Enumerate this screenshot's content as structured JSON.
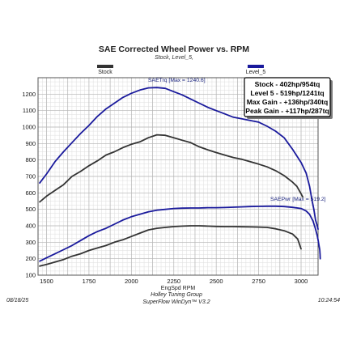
{
  "chart_data": {
    "type": "line",
    "title": "SAE Corrected Wheel Power vs. RPM",
    "subtitle": "Stock, Level_5,",
    "xlabel": "EngSpd RPM",
    "ylabel": "",
    "xlim": [
      1450,
      3100
    ],
    "ylim": [
      100,
      1300
    ],
    "x_ticks": [
      1500,
      1750,
      2000,
      2250,
      2500,
      2750,
      3000
    ],
    "y_ticks": [
      100,
      200,
      300,
      400,
      500,
      600,
      700,
      800,
      900,
      1000,
      1100,
      1200
    ],
    "grid": true,
    "legend": [
      {
        "name": "Stock",
        "color": "#333333"
      },
      {
        "name": "Level_5",
        "color": "#1a1a9c"
      }
    ],
    "series": [
      {
        "name": "Stock",
        "metric": "torque",
        "color": "#333333",
        "points": [
          [
            1460,
            545
          ],
          [
            1500,
            580
          ],
          [
            1550,
            615
          ],
          [
            1600,
            650
          ],
          [
            1650,
            700
          ],
          [
            1700,
            730
          ],
          [
            1750,
            765
          ],
          [
            1800,
            795
          ],
          [
            1850,
            830
          ],
          [
            1900,
            850
          ],
          [
            1950,
            875
          ],
          [
            2000,
            895
          ],
          [
            2050,
            910
          ],
          [
            2100,
            935
          ],
          [
            2150,
            953
          ],
          [
            2200,
            950
          ],
          [
            2250,
            935
          ],
          [
            2300,
            920
          ],
          [
            2350,
            905
          ],
          [
            2400,
            880
          ],
          [
            2450,
            862
          ],
          [
            2500,
            845
          ],
          [
            2550,
            830
          ],
          [
            2600,
            815
          ],
          [
            2650,
            805
          ],
          [
            2700,
            790
          ],
          [
            2750,
            775
          ],
          [
            2800,
            758
          ],
          [
            2850,
            735
          ],
          [
            2900,
            705
          ],
          [
            2950,
            665
          ],
          [
            2975,
            640
          ],
          [
            3000,
            595
          ],
          [
            3010,
            575
          ]
        ]
      },
      {
        "name": "Level_5",
        "metric": "torque",
        "color": "#1a1a9c",
        "points": [
          [
            1460,
            660
          ],
          [
            1500,
            715
          ],
          [
            1550,
            790
          ],
          [
            1600,
            850
          ],
          [
            1650,
            905
          ],
          [
            1700,
            960
          ],
          [
            1750,
            1010
          ],
          [
            1800,
            1065
          ],
          [
            1850,
            1110
          ],
          [
            1900,
            1145
          ],
          [
            1950,
            1180
          ],
          [
            2000,
            1205
          ],
          [
            2050,
            1225
          ],
          [
            2100,
            1238
          ],
          [
            2150,
            1240
          ],
          [
            2200,
            1235
          ],
          [
            2250,
            1215
          ],
          [
            2300,
            1195
          ],
          [
            2350,
            1170
          ],
          [
            2400,
            1145
          ],
          [
            2450,
            1120
          ],
          [
            2500,
            1100
          ],
          [
            2550,
            1080
          ],
          [
            2600,
            1060
          ],
          [
            2650,
            1050
          ],
          [
            2700,
            1040
          ],
          [
            2750,
            1030
          ],
          [
            2800,
            1005
          ],
          [
            2850,
            975
          ],
          [
            2900,
            935
          ],
          [
            2950,
            865
          ],
          [
            3000,
            785
          ],
          [
            3030,
            720
          ],
          [
            3050,
            640
          ],
          [
            3065,
            550
          ],
          [
            3075,
            500
          ],
          [
            3085,
            435
          ],
          [
            3095,
            400
          ],
          [
            3100,
            380
          ]
        ]
      },
      {
        "name": "Stock",
        "metric": "power",
        "color": "#333333",
        "points": [
          [
            1460,
            155
          ],
          [
            1500,
            165
          ],
          [
            1550,
            180
          ],
          [
            1600,
            195
          ],
          [
            1650,
            215
          ],
          [
            1700,
            230
          ],
          [
            1750,
            250
          ],
          [
            1800,
            265
          ],
          [
            1850,
            280
          ],
          [
            1900,
            300
          ],
          [
            1950,
            315
          ],
          [
            2000,
            335
          ],
          [
            2050,
            355
          ],
          [
            2100,
            375
          ],
          [
            2150,
            385
          ],
          [
            2200,
            390
          ],
          [
            2250,
            395
          ],
          [
            2300,
            398
          ],
          [
            2350,
            400
          ],
          [
            2400,
            400
          ],
          [
            2450,
            398
          ],
          [
            2500,
            396
          ],
          [
            2550,
            395
          ],
          [
            2600,
            395
          ],
          [
            2650,
            394
          ],
          [
            2700,
            393
          ],
          [
            2750,
            392
          ],
          [
            2800,
            390
          ],
          [
            2850,
            382
          ],
          [
            2900,
            370
          ],
          [
            2950,
            350
          ],
          [
            2980,
            320
          ],
          [
            3000,
            260
          ]
        ]
      },
      {
        "name": "Level_5",
        "metric": "power",
        "color": "#1a1a9c",
        "points": [
          [
            1460,
            185
          ],
          [
            1500,
            205
          ],
          [
            1550,
            230
          ],
          [
            1600,
            255
          ],
          [
            1650,
            280
          ],
          [
            1700,
            310
          ],
          [
            1750,
            340
          ],
          [
            1800,
            365
          ],
          [
            1850,
            385
          ],
          [
            1900,
            410
          ],
          [
            1950,
            435
          ],
          [
            2000,
            455
          ],
          [
            2050,
            470
          ],
          [
            2100,
            485
          ],
          [
            2150,
            495
          ],
          [
            2200,
            500
          ],
          [
            2250,
            505
          ],
          [
            2300,
            507
          ],
          [
            2350,
            508
          ],
          [
            2400,
            508
          ],
          [
            2450,
            510
          ],
          [
            2500,
            510
          ],
          [
            2550,
            511
          ],
          [
            2600,
            513
          ],
          [
            2650,
            515
          ],
          [
            2700,
            517
          ],
          [
            2750,
            518
          ],
          [
            2800,
            519
          ],
          [
            2850,
            519
          ],
          [
            2900,
            517
          ],
          [
            2950,
            512
          ],
          [
            3000,
            505
          ],
          [
            3030,
            490
          ],
          [
            3050,
            470
          ],
          [
            3070,
            430
          ],
          [
            3085,
            380
          ],
          [
            3095,
            340
          ],
          [
            3100,
            315
          ],
          [
            3105,
            285
          ],
          [
            3110,
            255
          ],
          [
            3112,
            225
          ],
          [
            3113,
            200
          ]
        ]
      }
    ],
    "annotations": [
      {
        "text": "SAETrq [Max = 1240.6]",
        "color": "#1a1a9c"
      },
      {
        "text": "SAEPwr [Max = 519.2]",
        "color": "#1a1a9c"
      }
    ],
    "summary_box": [
      "Stock - 402hp/954tq",
      "Level 5 - 519hp/1241tq",
      "Max Gain - +136hp/340tq",
      "Peak Gain - +117hp/287tq"
    ]
  },
  "footer": {
    "date": "08/18/25",
    "company": "Holley Tuning Group",
    "software": "SuperFlow WinDyn™ V3.2",
    "time": "10:24:54"
  }
}
